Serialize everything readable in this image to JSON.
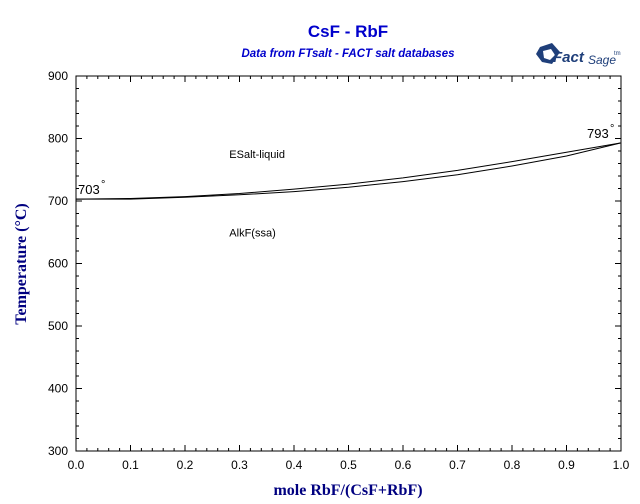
{
  "chart_data": {
    "type": "line",
    "title": "CsF - RbF",
    "subtitle": "Data from FTsalt - FACT salt databases",
    "xlabel": "mole RbF/(CsF+RbF)",
    "ylabel": "Temperature (°C)",
    "xlim": [
      0,
      1
    ],
    "ylim": [
      300,
      900
    ],
    "x_ticks": [
      "0.0",
      "0.1",
      "0.2",
      "0.3",
      "0.4",
      "0.5",
      "0.6",
      "0.7",
      "0.8",
      "0.9",
      "1.0"
    ],
    "y_ticks": [
      "300",
      "400",
      "500",
      "600",
      "700",
      "800",
      "900"
    ],
    "series": [
      {
        "x": [
          0,
          0.1,
          0.2,
          0.3,
          0.4,
          0.5,
          0.6,
          0.7,
          0.8,
          0.9,
          1.0
        ],
        "values": [
          703,
          704,
          707,
          712,
          719,
          727,
          737,
          749,
          763,
          778,
          793
        ]
      },
      {
        "x": [
          0,
          0.1,
          0.2,
          0.3,
          0.4,
          0.5,
          0.6,
          0.7,
          0.8,
          0.9,
          1.0
        ],
        "values": [
          703,
          703,
          706,
          710,
          715,
          722,
          731,
          742,
          756,
          772,
          793
        ]
      }
    ],
    "annotations": [
      {
        "text": "ESalt-liquid",
        "x": 0.34,
        "y": 775
      },
      {
        "text": "AlkF(ssa)",
        "x": 0.34,
        "y": 650
      },
      {
        "text": "703",
        "x": 0.0,
        "y": 703,
        "degree": "°"
      },
      {
        "text": "793",
        "x": 1.0,
        "y": 793,
        "degree": "°"
      }
    ],
    "grid": false,
    "colors": {
      "title": "#0000cc",
      "axis_label": "#000080",
      "line": "#000000",
      "logo": "#1f3f7a"
    }
  },
  "logo": {
    "brand": "Fact",
    "sage": "Sage",
    "tm": "tm"
  }
}
